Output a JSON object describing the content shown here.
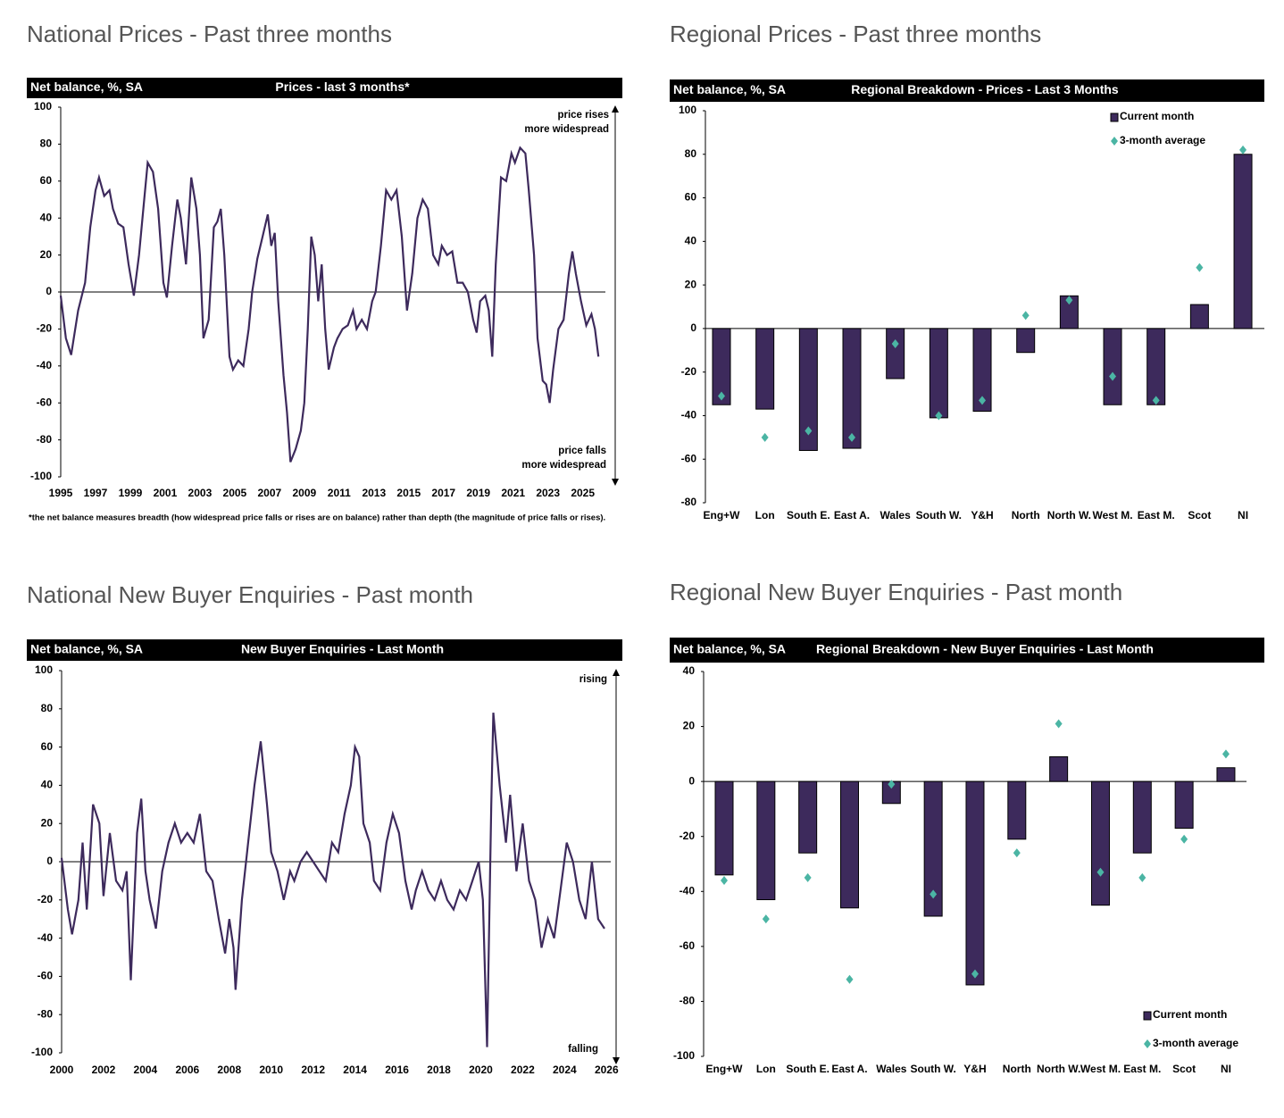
{
  "chart_data": [
    {
      "type": "line",
      "heading": "National Prices - Past three months",
      "unit": "Net balance, %, SA",
      "title": "Prices - last 3 months*",
      "annotations": [
        "price rises",
        "more widespread",
        "price falls",
        "more widespread"
      ],
      "footnote": "*the net balance measures breadth (how widespread price falls or rises are on balance)  rather than depth (the magnitude of price falls or rises).",
      "color": "#3d2a5c",
      "xlim": [
        1995,
        2026.3
      ],
      "ylim": [
        -100,
        100
      ],
      "xticks": [
        1995,
        1997,
        1999,
        2001,
        2003,
        2005,
        2007,
        2009,
        2011,
        2013,
        2015,
        2017,
        2019,
        2021,
        2023,
        2025
      ],
      "yticks": [
        100,
        80,
        60,
        40,
        20,
        0,
        -20,
        -40,
        -60,
        -80,
        -100
      ],
      "x": [
        1995,
        1995.3,
        1995.6,
        1996,
        1996.4,
        1996.7,
        1997.0,
        1997.2,
        1997.5,
        1997.8,
        1998.0,
        1998.3,
        1998.6,
        1998.9,
        1999.2,
        1999.5,
        1999.8,
        2000.0,
        2000.3,
        2000.6,
        2000.9,
        2001.1,
        2001.4,
        2001.7,
        2001.9,
        2002.2,
        2002.5,
        2002.8,
        2003.0,
        2003.2,
        2003.5,
        2003.8,
        2004.0,
        2004.2,
        2004.4,
        2004.7,
        2004.9,
        2005.2,
        2005.5,
        2005.8,
        2006.0,
        2006.3,
        2006.6,
        2006.9,
        2007.1,
        2007.3,
        2007.5,
        2007.8,
        2008.0,
        2008.2,
        2008.5,
        2008.8,
        2009.0,
        2009.2,
        2009.4,
        2009.6,
        2009.8,
        2010.0,
        2010.2,
        2010.4,
        2010.7,
        2010.9,
        2011.2,
        2011.5,
        2011.8,
        2012.0,
        2012.3,
        2012.6,
        2012.9,
        2013.1,
        2013.4,
        2013.7,
        2014.0,
        2014.3,
        2014.6,
        2014.9,
        2015.2,
        2015.5,
        2015.8,
        2016.1,
        2016.4,
        2016.7,
        2016.9,
        2017.2,
        2017.5,
        2017.8,
        2018.1,
        2018.4,
        2018.7,
        2018.9,
        2019.1,
        2019.4,
        2019.6,
        2019.8,
        2020.0,
        2020.3,
        2020.6,
        2020.9,
        2021.1,
        2021.4,
        2021.7,
        2021.9,
        2022.2,
        2022.4,
        2022.7,
        2022.9,
        2023.1,
        2023.3,
        2023.6,
        2023.9,
        2024.2,
        2024.4,
        2024.6,
        2024.9,
        2025.2,
        2025.5,
        2025.7,
        2025.9
      ],
      "values": [
        -2,
        -25,
        -34,
        -10,
        5,
        35,
        55,
        62,
        52,
        55,
        45,
        37,
        35,
        15,
        -2,
        20,
        50,
        70,
        65,
        45,
        5,
        -3,
        25,
        50,
        40,
        15,
        62,
        45,
        20,
        -25,
        -15,
        35,
        38,
        45,
        20,
        -35,
        -42,
        -37,
        -40,
        -20,
        0,
        18,
        30,
        42,
        25,
        32,
        -5,
        -45,
        -65,
        -92,
        -85,
        -75,
        -60,
        -20,
        30,
        20,
        -5,
        15,
        -20,
        -42,
        -30,
        -25,
        -20,
        -18,
        -10,
        -20,
        -15,
        -20,
        -5,
        0,
        25,
        55,
        50,
        55,
        30,
        -10,
        10,
        40,
        50,
        45,
        20,
        15,
        25,
        20,
        22,
        5,
        5,
        0,
        -15,
        -22,
        -5,
        -2,
        -10,
        -35,
        15,
        62,
        60,
        75,
        70,
        78,
        75,
        55,
        20,
        -25,
        -48,
        -50,
        -60,
        -42,
        -20,
        -15,
        10,
        22,
        10,
        -5,
        -18,
        -12,
        -20,
        -35
      ]
    },
    {
      "type": "bar",
      "heading": "Regional Prices - Past three months",
      "unit": "Net balance, %, SA",
      "title": "Regional Breakdown - Prices - Last 3 Months",
      "legend": "top-right",
      "ylim": [
        -80,
        100
      ],
      "yticks": [
        100,
        80,
        60,
        40,
        20,
        0,
        -20,
        -40,
        -60,
        -80
      ],
      "categories": [
        "Eng+W",
        "Lon",
        "South E.",
        "East A.",
        "Wales",
        "South W.",
        "Y&H",
        "North",
        "North W.",
        "West M.",
        "East M.",
        "Scot",
        "NI"
      ],
      "series": [
        {
          "name": "Current month",
          "color": "#3d2a5c",
          "values": [
            -35,
            -37,
            -56,
            -55,
            -23,
            -41,
            -38,
            -11,
            15,
            -35,
            -35,
            11,
            80
          ]
        },
        {
          "name": "3-month average",
          "color": "#4bb5a4",
          "values": [
            -31,
            -50,
            -47,
            -50,
            -7,
            -40,
            -33,
            6,
            13,
            -22,
            -33,
            28,
            82
          ]
        }
      ]
    },
    {
      "type": "line",
      "heading": "National New Buyer Enquiries - Past month",
      "unit": "Net balance, %, SA",
      "title": "New Buyer Enquiries - Last Month",
      "annotations": [
        "rising",
        "falling"
      ],
      "color": "#3d2a5c",
      "xlim": [
        2000,
        2026.2
      ],
      "ylim": [
        -100,
        100
      ],
      "xticks": [
        2000,
        2002,
        2004,
        2006,
        2008,
        2010,
        2012,
        2014,
        2016,
        2018,
        2020,
        2022,
        2024,
        2026
      ],
      "yticks": [
        100,
        80,
        60,
        40,
        20,
        0,
        -20,
        -40,
        -60,
        -80,
        -100
      ],
      "x": [
        2000.0,
        2000.3,
        2000.5,
        2000.8,
        2001.0,
        2001.2,
        2001.5,
        2001.8,
        2002.0,
        2002.3,
        2002.6,
        2002.9,
        2003.1,
        2003.3,
        2003.6,
        2003.8,
        2004.0,
        2004.2,
        2004.5,
        2004.8,
        2005.1,
        2005.4,
        2005.7,
        2006.0,
        2006.3,
        2006.6,
        2006.9,
        2007.2,
        2007.5,
        2007.8,
        2008.0,
        2008.2,
        2008.3,
        2008.6,
        2008.9,
        2009.2,
        2009.5,
        2009.8,
        2010.0,
        2010.3,
        2010.6,
        2010.9,
        2011.1,
        2011.4,
        2011.7,
        2012.0,
        2012.3,
        2012.6,
        2012.9,
        2013.2,
        2013.5,
        2013.8,
        2014.0,
        2014.2,
        2014.4,
        2014.7,
        2014.9,
        2015.2,
        2015.5,
        2015.8,
        2016.1,
        2016.4,
        2016.7,
        2016.9,
        2017.2,
        2017.5,
        2017.8,
        2018.1,
        2018.4,
        2018.7,
        2019.0,
        2019.3,
        2019.6,
        2019.9,
        2020.1,
        2020.3,
        2020.5,
        2020.6,
        2020.9,
        2021.2,
        2021.4,
        2021.7,
        2022.0,
        2022.3,
        2022.6,
        2022.9,
        2023.2,
        2023.5,
        2023.8,
        2024.1,
        2024.4,
        2024.7,
        2025.0,
        2025.3,
        2025.6,
        2025.9
      ],
      "values": [
        2,
        -25,
        -38,
        -20,
        10,
        -25,
        30,
        20,
        -18,
        15,
        -10,
        -15,
        -5,
        -62,
        15,
        33,
        -5,
        -20,
        -35,
        -5,
        10,
        20,
        10,
        15,
        10,
        25,
        -5,
        -10,
        -30,
        -48,
        -30,
        -45,
        -67,
        -20,
        10,
        40,
        63,
        30,
        5,
        -5,
        -20,
        -5,
        -10,
        0,
        5,
        0,
        -5,
        -10,
        10,
        5,
        25,
        40,
        60,
        55,
        20,
        10,
        -10,
        -15,
        10,
        25,
        15,
        -10,
        -25,
        -15,
        -5,
        -15,
        -20,
        -10,
        -20,
        -25,
        -15,
        -20,
        -10,
        0,
        -20,
        -97,
        30,
        78,
        40,
        10,
        35,
        -5,
        20,
        -10,
        -20,
        -45,
        -30,
        -40,
        -15,
        10,
        0,
        -20,
        -30,
        0,
        -30,
        -35
      ]
    },
    {
      "type": "bar",
      "heading": "Regional New Buyer Enquiries - Past month",
      "unit": "Net balance, %, SA",
      "title": "Regional Breakdown - New Buyer Enquiries - Last Month",
      "legend": "bottom-right",
      "ylim": [
        -100,
        40
      ],
      "yticks": [
        40,
        20,
        0,
        -20,
        -40,
        -60,
        -80,
        -100
      ],
      "categories": [
        "Eng+W",
        "Lon",
        "South E.",
        "East A.",
        "Wales",
        "South W.",
        "Y&H",
        "North",
        "North W.",
        "West M.",
        "East M.",
        "Scot",
        "NI"
      ],
      "series": [
        {
          "name": "Current month",
          "color": "#3d2a5c",
          "values": [
            -34,
            -43,
            -26,
            -46,
            -8,
            -49,
            -74,
            -21,
            9,
            -45,
            -26,
            -17,
            5
          ]
        },
        {
          "name": "3-month average",
          "color": "#4bb5a4",
          "values": [
            -36,
            -50,
            -35,
            -72,
            -1,
            -41,
            -70,
            -26,
            21,
            -33,
            -35,
            -21,
            10
          ]
        }
      ]
    }
  ]
}
